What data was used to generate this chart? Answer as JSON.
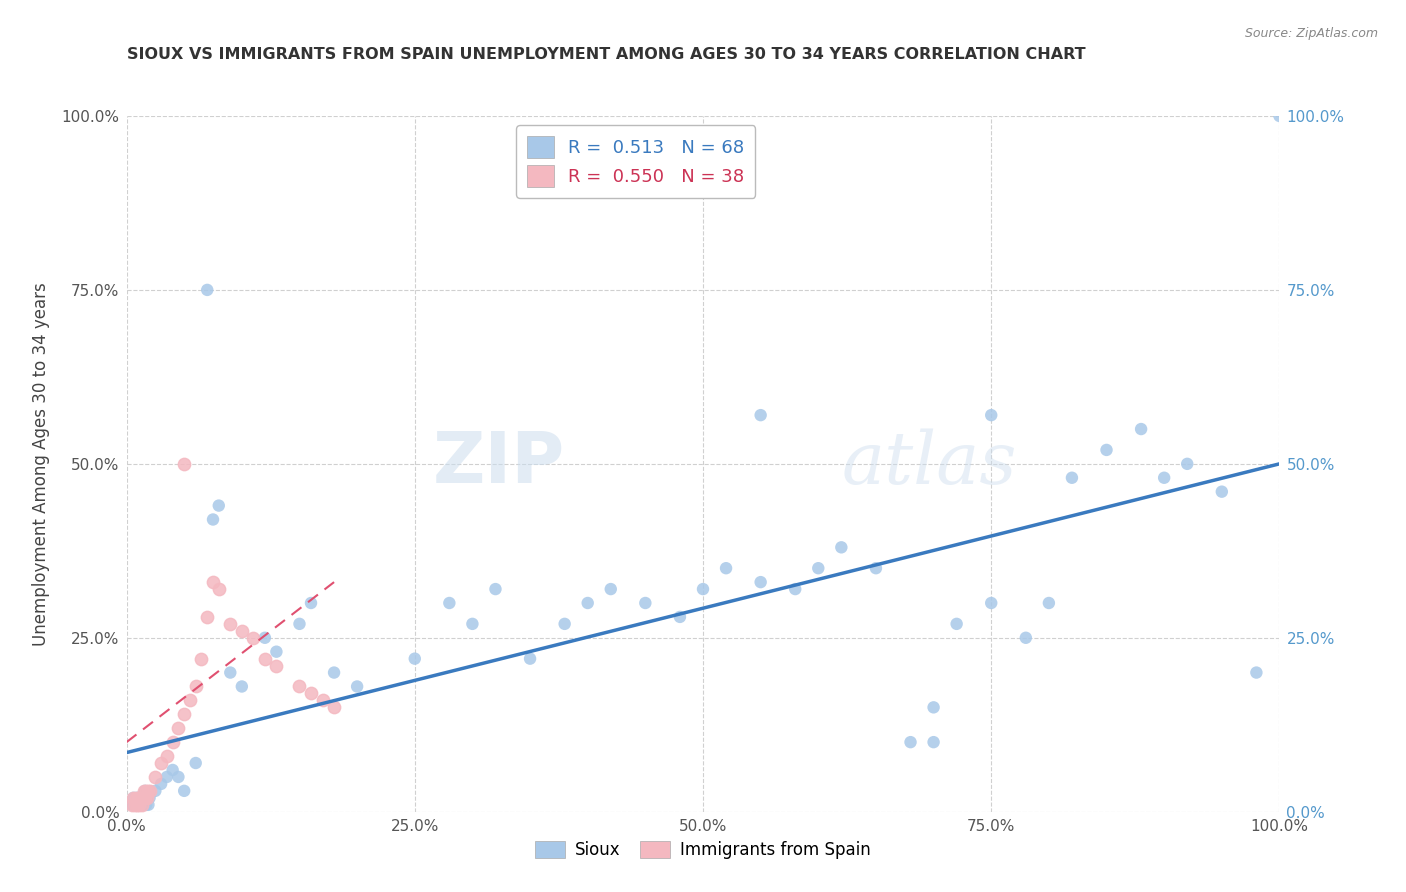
{
  "title": "SIOUX VS IMMIGRANTS FROM SPAIN UNEMPLOYMENT AMONG AGES 30 TO 34 YEARS CORRELATION CHART",
  "source_text": "Source: ZipAtlas.com",
  "ylabel": "Unemployment Among Ages 30 to 34 years",
  "xlim": [
    0,
    1.0
  ],
  "ylim": [
    0,
    1.0
  ],
  "xtick_labels": [
    "0.0%",
    "25.0%",
    "50.0%",
    "75.0%",
    "100.0%"
  ],
  "xtick_values": [
    0.0,
    0.25,
    0.5,
    0.75,
    1.0
  ],
  "ytick_labels": [
    "0.0%",
    "25.0%",
    "50.0%",
    "75.0%",
    "100.0%"
  ],
  "ytick_values": [
    0.0,
    0.25,
    0.5,
    0.75,
    1.0
  ],
  "sioux_R": "0.513",
  "sioux_N": "68",
  "spain_R": "0.550",
  "spain_N": "38",
  "sioux_color": "#a8c8e8",
  "spain_color": "#f4b8c0",
  "sioux_line_color": "#3a7abf",
  "spain_line_color": "#e05070",
  "watermark_zip": "ZIP",
  "watermark_atlas": "atlas",
  "background_color": "#ffffff",
  "grid_color": "#d0d0d0",
  "title_color": "#333333",
  "label_color": "#555555",
  "right_tick_color": "#5599cc",
  "sioux_scatter_x": [
    0.005,
    0.006,
    0.007,
    0.008,
    0.009,
    0.01,
    0.011,
    0.012,
    0.013,
    0.014,
    0.015,
    0.016,
    0.017,
    0.018,
    0.019,
    0.02,
    0.025,
    0.03,
    0.035,
    0.04,
    0.045,
    0.05,
    0.06,
    0.07,
    0.075,
    0.08,
    0.09,
    0.1,
    0.12,
    0.13,
    0.15,
    0.16,
    0.18,
    0.2,
    0.25,
    0.28,
    0.3,
    0.32,
    0.35,
    0.38,
    0.4,
    0.42,
    0.45,
    0.48,
    0.5,
    0.52,
    0.55,
    0.58,
    0.6,
    0.62,
    0.65,
    0.68,
    0.7,
    0.72,
    0.75,
    0.78,
    0.8,
    0.82,
    0.85,
    0.88,
    0.9,
    0.92,
    0.95,
    0.98,
    0.55,
    0.7,
    0.75,
    1.0
  ],
  "sioux_scatter_y": [
    0.01,
    0.02,
    0.01,
    0.01,
    0.02,
    0.01,
    0.02,
    0.01,
    0.02,
    0.01,
    0.02,
    0.03,
    0.01,
    0.02,
    0.01,
    0.02,
    0.03,
    0.04,
    0.05,
    0.06,
    0.05,
    0.03,
    0.07,
    0.75,
    0.42,
    0.44,
    0.2,
    0.18,
    0.25,
    0.23,
    0.27,
    0.3,
    0.2,
    0.18,
    0.22,
    0.3,
    0.27,
    0.32,
    0.22,
    0.27,
    0.3,
    0.32,
    0.3,
    0.28,
    0.32,
    0.35,
    0.33,
    0.32,
    0.35,
    0.38,
    0.35,
    0.1,
    0.15,
    0.27,
    0.3,
    0.25,
    0.3,
    0.48,
    0.52,
    0.55,
    0.48,
    0.5,
    0.46,
    0.2,
    0.57,
    0.1,
    0.57,
    1.0
  ],
  "spain_scatter_x": [
    0.005,
    0.006,
    0.007,
    0.008,
    0.009,
    0.01,
    0.011,
    0.012,
    0.013,
    0.014,
    0.015,
    0.016,
    0.017,
    0.018,
    0.019,
    0.02,
    0.025,
    0.03,
    0.035,
    0.04,
    0.045,
    0.05,
    0.055,
    0.06,
    0.065,
    0.07,
    0.075,
    0.08,
    0.09,
    0.1,
    0.11,
    0.12,
    0.13,
    0.15,
    0.16,
    0.17,
    0.18,
    0.05
  ],
  "spain_scatter_y": [
    0.01,
    0.02,
    0.01,
    0.02,
    0.01,
    0.02,
    0.01,
    0.02,
    0.01,
    0.02,
    0.03,
    0.02,
    0.03,
    0.02,
    0.03,
    0.03,
    0.05,
    0.07,
    0.08,
    0.1,
    0.12,
    0.14,
    0.16,
    0.18,
    0.22,
    0.28,
    0.33,
    0.32,
    0.27,
    0.26,
    0.25,
    0.22,
    0.21,
    0.18,
    0.17,
    0.16,
    0.15,
    0.5
  ],
  "sioux_line_x": [
    0.0,
    1.0
  ],
  "sioux_line_y": [
    0.085,
    0.5
  ],
  "spain_line_x": [
    0.0,
    0.18
  ],
  "spain_line_y": [
    0.1,
    0.33
  ]
}
